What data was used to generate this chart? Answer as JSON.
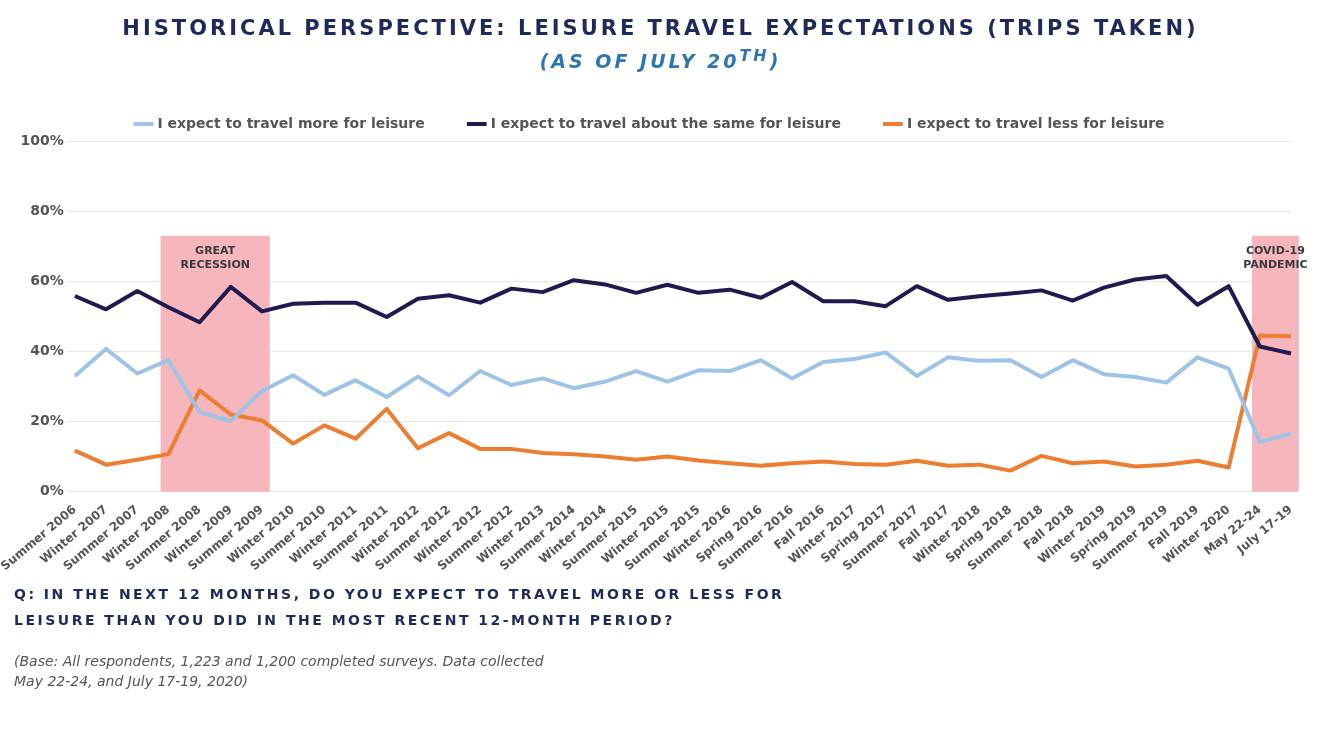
{
  "chart_data": {
    "type": "line",
    "title": "HISTORICAL PERSPECTIVE: LEISURE TRAVEL EXPECTATIONS (TRIPS TAKEN)",
    "subtitle": "(AS OF JULY 20$^{TH}$)",
    "categories": [
      "Summer 2006",
      "Winter 2007",
      "Summer 2007",
      "Winter 2008",
      "Summer 2008",
      "Winter 2009",
      "Summer 2009",
      "Winter 2010",
      "Summer 2010",
      "Winter 2011",
      "Summer 2011",
      "Winter 2012",
      "Summer 2012",
      "Winter 2012",
      "Summer 2012",
      "Winter 2013",
      "Summer 2014",
      "Winter 2014",
      "Summer 2015",
      "Winter 2015",
      "Summer 2015",
      "Winter 2016",
      "Spring 2016",
      "Summer 2016",
      "Fall 2016",
      "Winter 2017",
      "Spring 2017",
      "Summer 2017",
      "Fall 2017",
      "Winter 2018",
      "Spring 2018",
      "Summer 2018",
      "Fall 2018",
      "Winter 2019",
      "Spring 2019",
      "Summer 2019",
      "Fall 2019",
      "Winter 2020",
      "May 22-24",
      "July 17-19"
    ],
    "series": [
      {
        "name": "I expect to travel more for leisure",
        "color": "#9dc3e6",
        "values": [
          33,
          40.7,
          33.7,
          37.5,
          22.7,
          20.1,
          28.7,
          33.2,
          27.6,
          31.8,
          27,
          32.8,
          27.5,
          34.4,
          30.4,
          32.3,
          29.5,
          31.4,
          34.4,
          31.4,
          34.6,
          34.4,
          37.5,
          32.3,
          37,
          37.8,
          39.7,
          33,
          38.3,
          37.3,
          37.5,
          32.7,
          37.5,
          33.5,
          32.7,
          31.1,
          38.3,
          35.1,
          14.2,
          16.5
        ]
      },
      {
        "name": "I expect to travel about the same for leisure",
        "color": "#1f1a4f",
        "values": [
          55.8,
          52,
          57.2,
          52.6,
          48.3,
          58.4,
          51.4,
          53.6,
          53.9,
          53.9,
          49.8,
          55,
          56,
          53.9,
          57.9,
          56.9,
          60.3,
          59.1,
          56.7,
          59,
          56.7,
          57.6,
          55.3,
          59.8,
          54.3,
          54.3,
          52.9,
          58.6,
          54.7,
          55.7,
          56.5,
          57.4,
          54.5,
          58.2,
          60.5,
          61.5,
          53.3,
          58.6,
          41.4,
          39.4
        ]
      },
      {
        "name": "I expect to travel less for leisure",
        "color": "#ed7d31",
        "values": [
          11.7,
          7.7,
          9.1,
          10.7,
          28.9,
          22,
          20.3,
          13.7,
          18.9,
          15.1,
          23.6,
          12.4,
          16.7,
          12.2,
          12.2,
          11,
          10.7,
          10,
          9.1,
          10,
          8.9,
          8.1,
          7.4,
          8.1,
          8.6,
          7.9,
          7.7,
          8.8,
          7.4,
          7.7,
          6,
          10.2,
          8.1,
          8.6,
          7.2,
          7.7,
          8.8,
          6.9,
          44.5,
          44.3
        ]
      }
    ],
    "ylim": [
      0,
      100
    ],
    "yticks": [
      {
        "value": 0,
        "label": "0%"
      },
      {
        "value": 20,
        "label": "20%"
      },
      {
        "value": 40,
        "label": "40%"
      },
      {
        "value": 60,
        "label": "60%"
      },
      {
        "value": 80,
        "label": "80%"
      },
      {
        "value": 100,
        "label": "100%"
      }
    ],
    "grid": "y",
    "legend": "top",
    "marker": "none",
    "line_style": "solid",
    "bands": [
      {
        "axis": "x",
        "from": "Winter 2008",
        "to": "Summer 2009",
        "label": "GREAT RECESSION",
        "color": "#f7b6bb"
      },
      {
        "axis": "x",
        "from": "May 22-24",
        "to": "July 17-19",
        "label": "COVID-19 PANDEMIC",
        "color": "#f7b6bb"
      }
    ],
    "annotations": [
      "Q: IN THE NEXT 12 MONTHS, DO YOU EXPECT TO TRAVEL MORE OR LESS FOR LEISURE THAN YOU DID IN THE MOST RECENT 12-MONTH PERIOD?",
      "(Base: All respondents, 1,223 and 1,200 completed surveys. Data collected May 22-24, and July 17-19, 2020)"
    ]
  }
}
